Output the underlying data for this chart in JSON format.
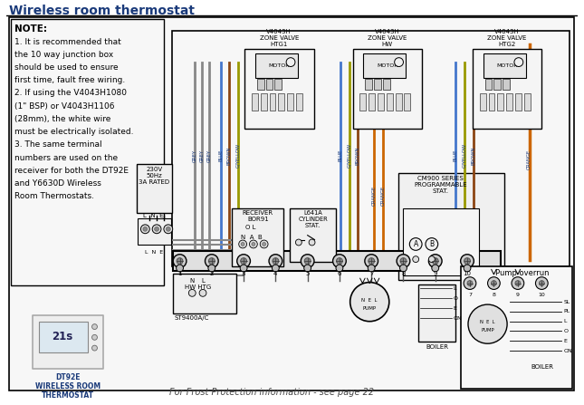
{
  "title": "Wireless room thermostat",
  "title_color": "#1a3a7a",
  "bg_color": "#ffffff",
  "note_lines": [
    "NOTE:",
    "1. It is recommended that",
    "the 10 way junction box",
    "should be used to ensure",
    "first time, fault free wiring.",
    "2. If using the V4043H1080",
    "(1\" BSP) or V4043H1106",
    "(28mm), the white wire",
    "must be electrically isolated.",
    "3. The same terminal",
    "numbers are used on the",
    "receiver for both the DT92E",
    "and Y6630D Wireless",
    "Room Thermostats."
  ],
  "frost_text": "For Frost Protection information - see page 22",
  "thermostat_label": "DT92E\nWIRELESS ROOM\nTHERMOSTAT",
  "pump_overrun_label": "Pump overrun",
  "valve_labels": [
    "V4043H\nZONE VALVE\nHTG1",
    "V4043H\nZONE VALVE\nHW",
    "V4043H\nZONE VALVE\nHTG2"
  ],
  "wire_label_color": "#1a3a7a",
  "text_color": "#1a3a7a",
  "black": "#000000",
  "grey_wire": "#888888",
  "blue_wire": "#4477cc",
  "brown_wire": "#8B4513",
  "gyellow_wire": "#999900",
  "orange_wire": "#cc6600",
  "box_fill": "#f8f8f8",
  "term_fill": "#dddddd"
}
